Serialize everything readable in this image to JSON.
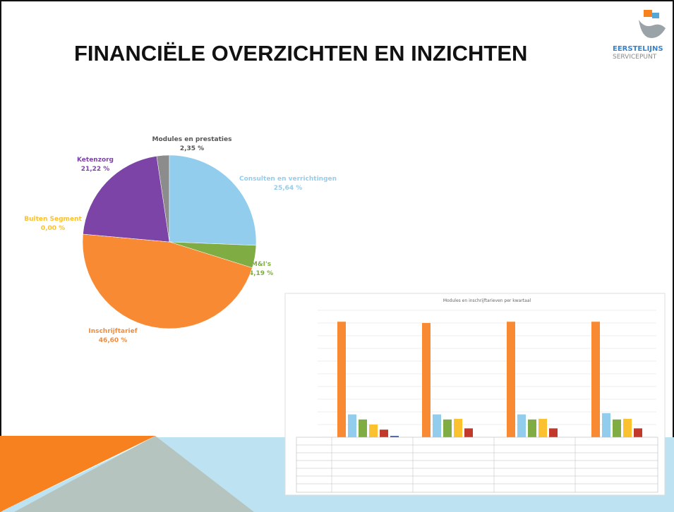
{
  "slide": {
    "title": "FINANCIËLE OVERZICHTEN EN INZICHTEN",
    "logo": [
      "EERSTELIJNS",
      "SERVICEPUNT"
    ]
  },
  "chart_data": [
    {
      "type": "pie",
      "categories": [
        "Modules en prestaties",
        "Consulten en verrichtingen",
        "M&I's",
        "Inschrijftarief",
        "Buiten Segment",
        "Ketenzorg"
      ],
      "values": [
        2.35,
        25.64,
        4.19,
        46.6,
        0.0,
        21.22
      ],
      "value_labels": [
        "2,35 %",
        "25,64 %",
        "4,19 %",
        "46,60 %",
        "0,00 %",
        "21,22 %"
      ],
      "colors": [
        "#8c8c8c",
        "#93cdee",
        "#7fad44",
        "#f78a33",
        "#fbc12f",
        "#7c44a6"
      ]
    },
    {
      "type": "bar",
      "title": "Modules en inschrijftarieven per kwartaal",
      "ylim": [
        0,
        10
      ],
      "yticks": [
        0,
        1,
        2,
        3,
        4,
        5,
        6,
        7,
        8,
        9,
        10
      ],
      "grid": true,
      "series": [
        {
          "color": "#f78a33",
          "values": [
            9.1,
            9.0,
            9.1,
            9.1
          ]
        },
        {
          "color": "#93cdee",
          "values": [
            1.8,
            1.8,
            1.8,
            1.9
          ]
        },
        {
          "color": "#7fad44",
          "values": [
            1.4,
            1.4,
            1.4,
            1.4
          ]
        },
        {
          "color": "#fbc12f",
          "values": [
            1.0,
            1.45,
            1.45,
            1.45
          ]
        },
        {
          "color": "#c0392b",
          "values": [
            0.6,
            0.7,
            0.7,
            0.7
          ]
        },
        {
          "color": "#2e4a8c",
          "values": [
            0.1,
            0,
            0,
            0
          ]
        }
      ]
    }
  ]
}
